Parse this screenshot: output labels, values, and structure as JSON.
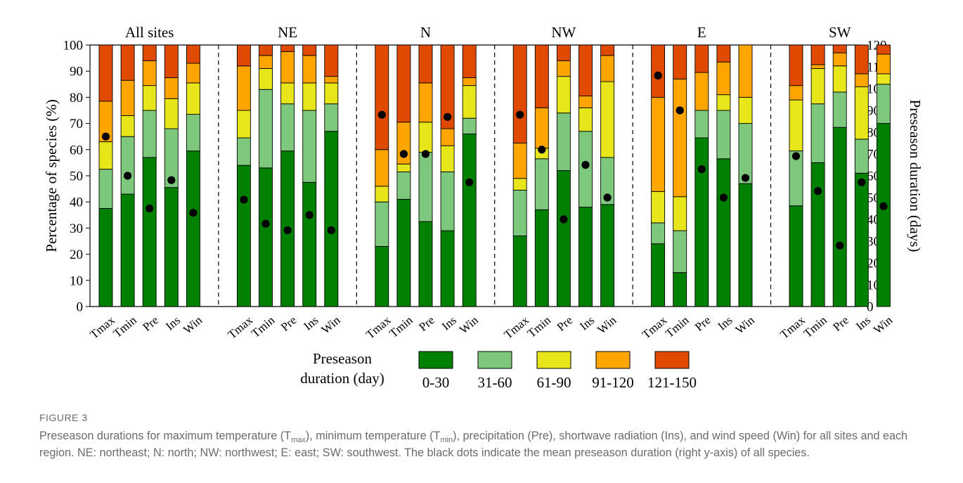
{
  "chart_data": {
    "type": "bar",
    "stacked": true,
    "groups": [
      {
        "name": "All sites",
        "categories": [
          "Tmax",
          "Tmin",
          "Pre",
          "Ins",
          "Win"
        ],
        "stacks": [
          [
            37.5,
            15,
            10.5,
            15.5,
            21.5
          ],
          [
            43,
            22,
            8,
            13.5,
            13.5
          ],
          [
            57,
            18,
            9.5,
            9.5,
            6
          ],
          [
            45.5,
            22.5,
            11.5,
            8,
            12.5
          ],
          [
            59.5,
            14,
            12,
            7.5,
            7
          ]
        ],
        "mean_days": [
          78,
          60,
          45,
          58,
          43
        ]
      },
      {
        "name": "NE",
        "categories": [
          "Tmax",
          "Tmin",
          "Pre",
          "Ins",
          "Win"
        ],
        "stacks": [
          [
            54,
            10.5,
            10.5,
            17,
            8
          ],
          [
            53,
            30,
            8,
            5,
            4
          ],
          [
            59.5,
            18,
            8,
            12,
            2.5
          ],
          [
            47.5,
            27.5,
            10.5,
            10.5,
            4
          ],
          [
            67,
            10.5,
            8,
            2.5,
            12
          ]
        ],
        "mean_days": [
          49,
          38,
          35,
          42,
          35
        ]
      },
      {
        "name": "N",
        "categories": [
          "Tmax",
          "Tmin",
          "Pre",
          "Ins",
          "Win"
        ],
        "stacks": [
          [
            23,
            17,
            6,
            14,
            40
          ],
          [
            41,
            10.5,
            3,
            16,
            29.5
          ],
          [
            32.5,
            26.5,
            11.5,
            15,
            14.5
          ],
          [
            29,
            22.5,
            10,
            6.5,
            32
          ],
          [
            66,
            6,
            12.5,
            3,
            12.5
          ]
        ],
        "mean_days": [
          88,
          70,
          70,
          87,
          57
        ]
      },
      {
        "name": "NW",
        "categories": [
          "Tmax",
          "Tmin",
          "Pre",
          "Ins",
          "Win"
        ],
        "stacks": [
          [
            27,
            17.5,
            4.5,
            13.5,
            37.5
          ],
          [
            37,
            19.5,
            4,
            15.5,
            24
          ],
          [
            52,
            22,
            14,
            6,
            6
          ],
          [
            38,
            29,
            9,
            4.5,
            19.5
          ],
          [
            39,
            18,
            29,
            10,
            4
          ]
        ],
        "mean_days": [
          88,
          72,
          40,
          65,
          50
        ]
      },
      {
        "name": "E",
        "categories": [
          "Tmax",
          "Tmin",
          "Pre",
          "Ins",
          "Win"
        ],
        "stacks": [
          [
            24,
            8,
            12,
            36,
            20
          ],
          [
            13,
            16,
            13,
            45,
            13
          ],
          [
            64.5,
            10.5,
            0,
            14.5,
            10.5
          ],
          [
            56.5,
            18.5,
            6,
            12.5,
            6.5
          ],
          [
            47,
            23,
            10,
            20,
            0
          ]
        ],
        "mean_days": [
          106,
          90,
          63,
          50,
          59
        ]
      },
      {
        "name": "SW",
        "categories": [
          "Tmax",
          "Tmin",
          "Pre",
          "Ins",
          "Win"
        ],
        "stacks": [
          [
            38.5,
            21,
            19.5,
            5.5,
            15.5
          ],
          [
            55,
            22.5,
            13.5,
            1.5,
            7.5
          ],
          [
            68.5,
            13.5,
            10,
            5,
            3
          ],
          [
            51,
            13,
            20,
            5,
            11
          ],
          [
            70,
            15,
            4,
            7.5,
            3.5
          ]
        ],
        "mean_days": [
          69,
          53,
          28,
          57,
          46
        ]
      }
    ],
    "stack_colors": [
      "#008000",
      "#7dc87d",
      "#e6e61a",
      "#ffa500",
      "#e04a00"
    ],
    "y_left": {
      "label": "Percentage of species (%)",
      "min": 0,
      "max": 100,
      "step": 10
    },
    "y_right": {
      "label": "Preseason duration (days)",
      "min": 0,
      "max": 120,
      "step": 10
    },
    "legend": {
      "title_line1": "Preseason",
      "title_line2": "duration (day)",
      "entries": [
        "0-30",
        "31-60",
        "61-90",
        "91-120",
        "121-150"
      ],
      "placement": "bottom"
    },
    "grid": false
  },
  "caption": {
    "label": "FIGURE 3",
    "parts": [
      {
        "t": "Preseason durations for maximum temperature (T"
      },
      {
        "t": "max",
        "sub": true
      },
      {
        "t": "), minimum temperature (T"
      },
      {
        "t": "min",
        "sub": true
      },
      {
        "t": "), precipitation (Pre), shortwave radiation (Ins), and wind speed (Win) for all sites and each region. NE: northeast; N: north; NW: northwest; E: east; SW: southwest. The black dots indicate the mean preseason duration (right y-axis) of all species."
      }
    ]
  }
}
